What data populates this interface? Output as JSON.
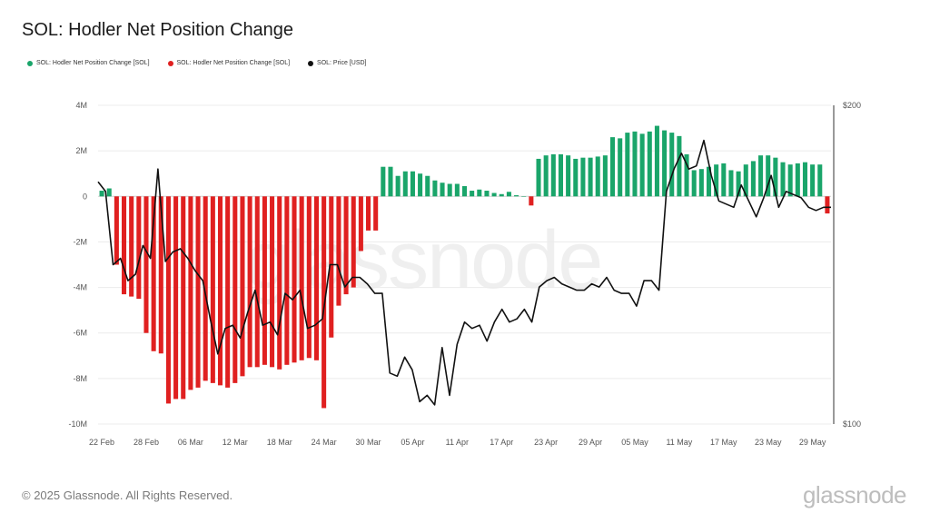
{
  "page": {
    "title": "SOL: Hodler Net Position Change",
    "footer": "© 2025 Glassnode. All Rights Reserved.",
    "brand": "glassnode",
    "watermark": "glassnode"
  },
  "legend": [
    {
      "label": "SOL: Hodler Net Position Change [SOL]",
      "color": "#1aa56a"
    },
    {
      "label": "SOL: Hodler Net Position Change [SOL]",
      "color": "#e02020"
    },
    {
      "label": "SOL: Price [USD]",
      "color": "#111111"
    }
  ],
  "chart_data": {
    "type": "bar",
    "title": "SOL: Hodler Net Position Change",
    "y_left": {
      "min": -10000000,
      "max": 4000000,
      "ticks": [
        4000000,
        2000000,
        0,
        -2000000,
        -4000000,
        -6000000,
        -8000000,
        -10000000
      ],
      "tick_labels": [
        "4M",
        "2M",
        "0",
        "-2M",
        "-4M",
        "-6M",
        "-8M",
        "-10M"
      ]
    },
    "y_right": {
      "min": 100,
      "max": 200,
      "tick_labels": [
        "$200",
        "$100"
      ]
    },
    "x_tick_labels": [
      "22 Feb",
      "28 Feb",
      "06 Mar",
      "12 Mar",
      "18 Mar",
      "24 Mar",
      "30 Mar",
      "05 Apr",
      "11 Apr",
      "17 Apr",
      "23 Apr",
      "29 Apr",
      "05 May",
      "11 May",
      "17 May",
      "23 May",
      "29 May"
    ],
    "start_date": "22 Feb",
    "positive_color": "#1aa56a",
    "negative_color": "#e02020",
    "line_color": "#111111",
    "series": [
      {
        "name": "SOL: Hodler Net Position Change [SOL]",
        "values": [
          250000,
          350000,
          -3000000,
          -4300000,
          -4400000,
          -4500000,
          -6000000,
          -6800000,
          -6900000,
          -9100000,
          -8900000,
          -8900000,
          -8500000,
          -8400000,
          -8100000,
          -8200000,
          -8300000,
          -8400000,
          -8200000,
          -7900000,
          -7500000,
          -7500000,
          -7400000,
          -7500000,
          -7600000,
          -7400000,
          -7300000,
          -7200000,
          -7100000,
          -7200000,
          -9300000,
          -6200000,
          -4800000,
          -4300000,
          -4000000,
          -2400000,
          -1500000,
          -1500000,
          1300000,
          1300000,
          900000,
          1100000,
          1100000,
          1000000,
          900000,
          700000,
          600000,
          550000,
          550000,
          450000,
          250000,
          300000,
          250000,
          150000,
          100000,
          200000,
          50000,
          0,
          -400000,
          1650000,
          1800000,
          1850000,
          1850000,
          1800000,
          1650000,
          1700000,
          1700000,
          1750000,
          1800000,
          2600000,
          2550000,
          2800000,
          2850000,
          2750000,
          2850000,
          3100000,
          2900000,
          2800000,
          2650000,
          1850000,
          1150000,
          1200000,
          1300000,
          1400000,
          1450000,
          1150000,
          1100000,
          1400000,
          1550000,
          1800000,
          1800000,
          1700000,
          1500000,
          1400000,
          1450000,
          1500000,
          1400000,
          1400000,
          -750000
        ]
      },
      {
        "name": "SOL: Price [USD]",
        "values": [
          176,
          173,
          150,
          152,
          145,
          147,
          156,
          152,
          180,
          151,
          154,
          155,
          152,
          148,
          145,
          133,
          122,
          130,
          131,
          127,
          135,
          142,
          131,
          132,
          128,
          141,
          139,
          142,
          130,
          131,
          133,
          150,
          150,
          143,
          146,
          146,
          144,
          141,
          141,
          116,
          115,
          121,
          117,
          107,
          109,
          106,
          124,
          109,
          125,
          132,
          130,
          131,
          126,
          132,
          136,
          132,
          133,
          136,
          132,
          143,
          145,
          146,
          144,
          143,
          142,
          142,
          144,
          143,
          146,
          142,
          141,
          141,
          137,
          145,
          145,
          142,
          173,
          180,
          185,
          180,
          181,
          189,
          178,
          170,
          169,
          168,
          175,
          170,
          165,
          171,
          178,
          168,
          173,
          172,
          171,
          168,
          167,
          168,
          168
        ]
      }
    ]
  }
}
